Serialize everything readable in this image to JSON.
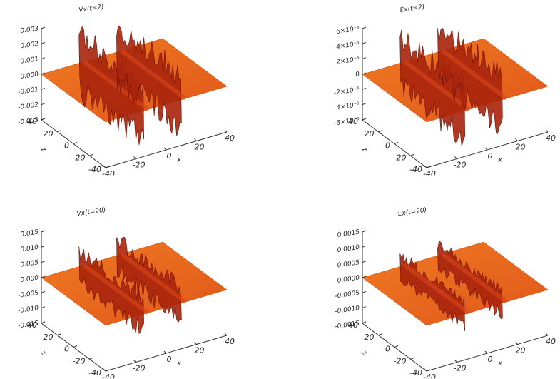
{
  "chart_data": [
    {
      "type": "surface",
      "title": "Vx(t=2)",
      "xlabel": "x",
      "ylabel": "z",
      "xlim": [
        -40,
        40
      ],
      "xticks": [
        -40,
        -20,
        0,
        20,
        40
      ],
      "ylim": [
        -40,
        40
      ],
      "yticks": [
        -40,
        -20,
        0,
        20,
        40
      ],
      "zlim": [
        -0.003,
        0.003
      ],
      "zticks": [
        -0.003,
        -0.002,
        -0.001,
        {
          "value": 0,
          "label": "0.000"
        },
        0.001,
        0.002,
        0.003
      ]
    },
    {
      "type": "surface",
      "title": "Ex(t=2)",
      "xlabel": "x",
      "ylabel": "z",
      "xlim": [
        -40,
        40
      ],
      "xticks": [
        -40,
        -20,
        0,
        20,
        40
      ],
      "ylim": [
        -40,
        40
      ],
      "yticks": [
        -40,
        -20,
        0,
        20,
        40
      ],
      "zlim": [
        -6e-05,
        6e-05
      ],
      "zticks": [
        {
          "value": -6e-05,
          "label": "-6×10⁻⁵"
        },
        {
          "value": -4e-05,
          "label": "-4×10⁻⁵"
        },
        {
          "value": -2e-05,
          "label": "-2×10⁻⁵"
        },
        0,
        {
          "value": 2e-05,
          "label": "2×10⁻⁵"
        },
        {
          "value": 4e-05,
          "label": "4×10⁻⁵"
        },
        {
          "value": 6e-05,
          "label": "6×10⁻⁵"
        }
      ]
    },
    {
      "type": "surface",
      "title": "Vx(t=20)",
      "xlabel": "x",
      "ylabel": "z",
      "xlim": [
        -40,
        40
      ],
      "xticks": [
        -40,
        -20,
        0,
        20,
        40
      ],
      "ylim": [
        -40,
        40
      ],
      "yticks": [
        -40,
        -20,
        0,
        20,
        40
      ],
      "zlim": [
        -0.015,
        0.015
      ],
      "zticks": [
        -0.015,
        {
          "value": -0.01,
          "label": "-0.010"
        },
        -0.005,
        {
          "value": 0,
          "label": "0.000"
        },
        0.005,
        {
          "value": 0.01,
          "label": "0.010"
        },
        0.015
      ]
    },
    {
      "type": "surface",
      "title": "Ex(t=20)",
      "xlabel": "x",
      "ylabel": "z",
      "xlim": [
        -40,
        40
      ],
      "xticks": [
        -40,
        -20,
        0,
        20,
        40
      ],
      "ylim": [
        -40,
        40
      ],
      "yticks": [
        -40,
        -20,
        0,
        20,
        40
      ],
      "zlim": [
        -0.0015,
        0.0015
      ],
      "zticks": [
        -0.0015,
        {
          "value": -0.001,
          "label": "-0.0010"
        },
        -0.0005,
        {
          "value": 0,
          "label": "0.0000"
        },
        0.0005,
        {
          "value": 0.001,
          "label": "0.0010"
        },
        0.0015
      ]
    }
  ]
}
